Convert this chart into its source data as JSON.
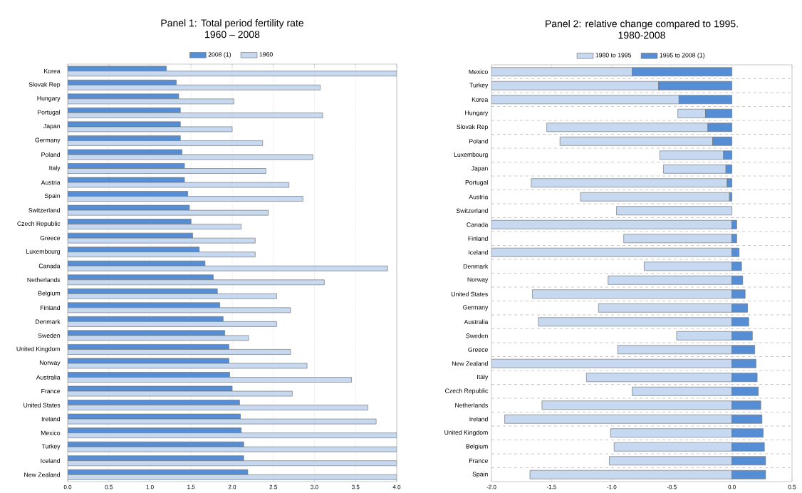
{
  "chart_data": [
    {
      "type": "bar",
      "orientation": "horizontal",
      "title": "Panel 1: Total period fertility rate",
      "subtitle": "1960 – 2008",
      "categories": [
        "Korea",
        "Slovak Rep",
        "Hungary",
        "Portugal",
        "Japan",
        "Germany",
        "Poland",
        "Italy",
        "Austria",
        "Spain",
        "Switzerland",
        "Czech Republic",
        "Greece",
        "Luxembourg",
        "Canada",
        "Netherlands",
        "Belgium",
        "Finland",
        "Denmark",
        "Sweden",
        "United Kingdom",
        "Norway",
        "Australia",
        "France",
        "United States",
        "Ireland",
        "Mexico",
        "Turkey",
        "Iceland",
        "New Zealand"
      ],
      "series": [
        {
          "name": "2008 (1)",
          "color": "#558ed5",
          "values": [
            1.2,
            1.32,
            1.35,
            1.37,
            1.37,
            1.37,
            1.39,
            1.42,
            1.42,
            1.46,
            1.48,
            1.5,
            1.52,
            1.6,
            1.67,
            1.77,
            1.82,
            1.85,
            1.89,
            1.91,
            1.96,
            1.96,
            1.97,
            2.0,
            2.09,
            2.1,
            2.11,
            2.14,
            2.14,
            2.19
          ]
        },
        {
          "name": "1960",
          "color": "#c6d9f1",
          "values": [
            4.0,
            3.07,
            2.02,
            3.1,
            2.0,
            2.37,
            2.98,
            2.41,
            2.69,
            2.86,
            2.44,
            2.11,
            2.28,
            2.28,
            3.89,
            3.12,
            2.54,
            2.71,
            2.54,
            2.2,
            2.71,
            2.91,
            3.45,
            2.73,
            3.65,
            3.75,
            4.0,
            4.0,
            4.0,
            4.0
          ]
        }
      ],
      "xlim": [
        0,
        4.0
      ],
      "xticks": [
        {
          "value": 0,
          "label": "0.0"
        },
        0.5,
        {
          "value": 1,
          "label": "1.0"
        },
        1.5,
        {
          "value": 2,
          "label": "2.0"
        },
        2.5,
        {
          "value": 3,
          "label": "3.0"
        },
        3.5,
        {
          "value": 4,
          "label": "4.0"
        }
      ],
      "grid": "x",
      "legend": "top"
    },
    {
      "type": "bar",
      "orientation": "horizontal",
      "stacked": true,
      "title": "Panel 2: relative change compared to 1995.",
      "subtitle": "1980-2008",
      "categories": [
        "Mexico",
        "Turkey",
        "Korea",
        "Hungary",
        "Slovak Rep",
        "Poland",
        "Luxembourg",
        "Japan",
        "Portugal",
        "Austria",
        "Switzerland",
        "Canada",
        "Finland",
        "Iceland",
        "Denmark",
        "Norway",
        "United States",
        "Germany",
        "Australia",
        "Sweden",
        "Greece",
        "New Zealand",
        "Italy",
        "Czech Republic",
        "Netherlands",
        "Ireland",
        "United Kingdom",
        "Belgium",
        "France",
        "Spain"
      ],
      "series": [
        {
          "name": "1995 to 2008 (1)",
          "color": "#558ed5",
          "values": [
            -0.83,
            -0.61,
            -0.44,
            -0.22,
            -0.2,
            -0.16,
            -0.07,
            -0.05,
            -0.04,
            -0.02,
            0.0,
            0.04,
            0.04,
            0.06,
            0.08,
            0.09,
            0.11,
            0.13,
            0.14,
            0.17,
            0.19,
            0.2,
            0.21,
            0.22,
            0.24,
            0.25,
            0.26,
            0.27,
            0.28,
            0.28
          ]
        },
        {
          "name": "1980 to 1995",
          "color": "#c6d9f1",
          "values": [
            -1.17,
            -1.39,
            -1.56,
            -0.23,
            -1.34,
            -1.27,
            -0.53,
            -0.52,
            -1.63,
            -1.24,
            -0.96,
            -2.0,
            -0.9,
            -2.0,
            -0.73,
            -1.03,
            -1.66,
            -1.11,
            -1.61,
            -0.46,
            -0.95,
            -2.0,
            -1.21,
            -0.83,
            -1.58,
            -1.89,
            -1.01,
            -0.98,
            -1.02,
            -1.68
          ]
        }
      ],
      "xlim": [
        -2.0,
        0.5
      ],
      "xticks": [
        {
          "value": -2,
          "label": "-2.0"
        },
        -1.5,
        {
          "value": -1,
          "label": "-1.0"
        },
        -0.5,
        {
          "value": 0,
          "label": "0.0"
        },
        0.5
      ],
      "grid": "y",
      "legend": "top"
    }
  ]
}
